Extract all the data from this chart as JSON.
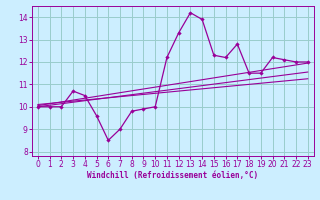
{
  "xlabel": "Windchill (Refroidissement éolien,°C)",
  "xlim": [
    -0.5,
    23.5
  ],
  "ylim": [
    7.8,
    14.5
  ],
  "xticks": [
    0,
    1,
    2,
    3,
    4,
    5,
    6,
    7,
    8,
    9,
    10,
    11,
    12,
    13,
    14,
    15,
    16,
    17,
    18,
    19,
    20,
    21,
    22,
    23
  ],
  "yticks": [
    8,
    9,
    10,
    11,
    12,
    13,
    14
  ],
  "bg_color": "#cceeff",
  "grid_color": "#99cccc",
  "line_color": "#990099",
  "scatter_x": [
    0,
    1,
    2,
    3,
    4,
    5,
    6,
    7,
    8,
    9,
    10,
    11,
    12,
    13,
    14,
    15,
    16,
    17,
    18,
    19,
    20,
    21,
    22,
    23
  ],
  "scatter_y": [
    10.0,
    10.0,
    10.0,
    10.7,
    10.5,
    9.6,
    8.5,
    9.0,
    9.8,
    9.9,
    10.0,
    12.2,
    13.3,
    14.2,
    13.9,
    12.3,
    12.2,
    12.8,
    11.5,
    11.5,
    12.2,
    12.1,
    12.0,
    12.0
  ],
  "trend1_x": [
    0,
    23
  ],
  "trend1_y": [
    10.0,
    11.55
  ],
  "trend2_x": [
    0,
    23
  ],
  "trend2_y": [
    10.05,
    11.95
  ],
  "trend3_x": [
    0,
    23
  ],
  "trend3_y": [
    10.1,
    11.25
  ]
}
